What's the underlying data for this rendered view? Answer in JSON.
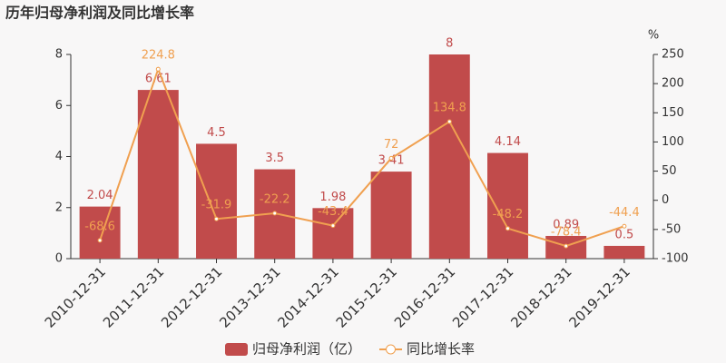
{
  "chart_data": {
    "type": "bar",
    "title": "历年归母净利润及同比增长率",
    "categories": [
      "2010-12-31",
      "2011-12-31",
      "2012-12-31",
      "2013-12-31",
      "2014-12-31",
      "2015-12-31",
      "2016-12-31",
      "2017-12-31",
      "2018-12-31",
      "2019-12-31"
    ],
    "series": [
      {
        "name": "归母净利润（亿）",
        "type": "bar",
        "color": "#c14b4b",
        "values": [
          2.04,
          6.61,
          4.5,
          3.5,
          1.98,
          3.41,
          8,
          4.14,
          0.89,
          0.5
        ]
      },
      {
        "name": "同比增长率",
        "type": "line",
        "axis": "y2",
        "color": "#f0a050",
        "values": [
          -68.6,
          224.8,
          -31.9,
          -22.2,
          -43.4,
          72,
          134.8,
          -48.2,
          -78.4,
          -44.4
        ]
      }
    ],
    "ylim": [
      0,
      8
    ],
    "yticks": [
      0,
      2,
      4,
      6,
      8
    ],
    "y2label": "%",
    "y2lim": [
      -100,
      250
    ],
    "y2ticks": [
      -100,
      -50,
      0,
      50,
      100,
      150,
      200,
      250
    ],
    "legend": "bottom"
  }
}
